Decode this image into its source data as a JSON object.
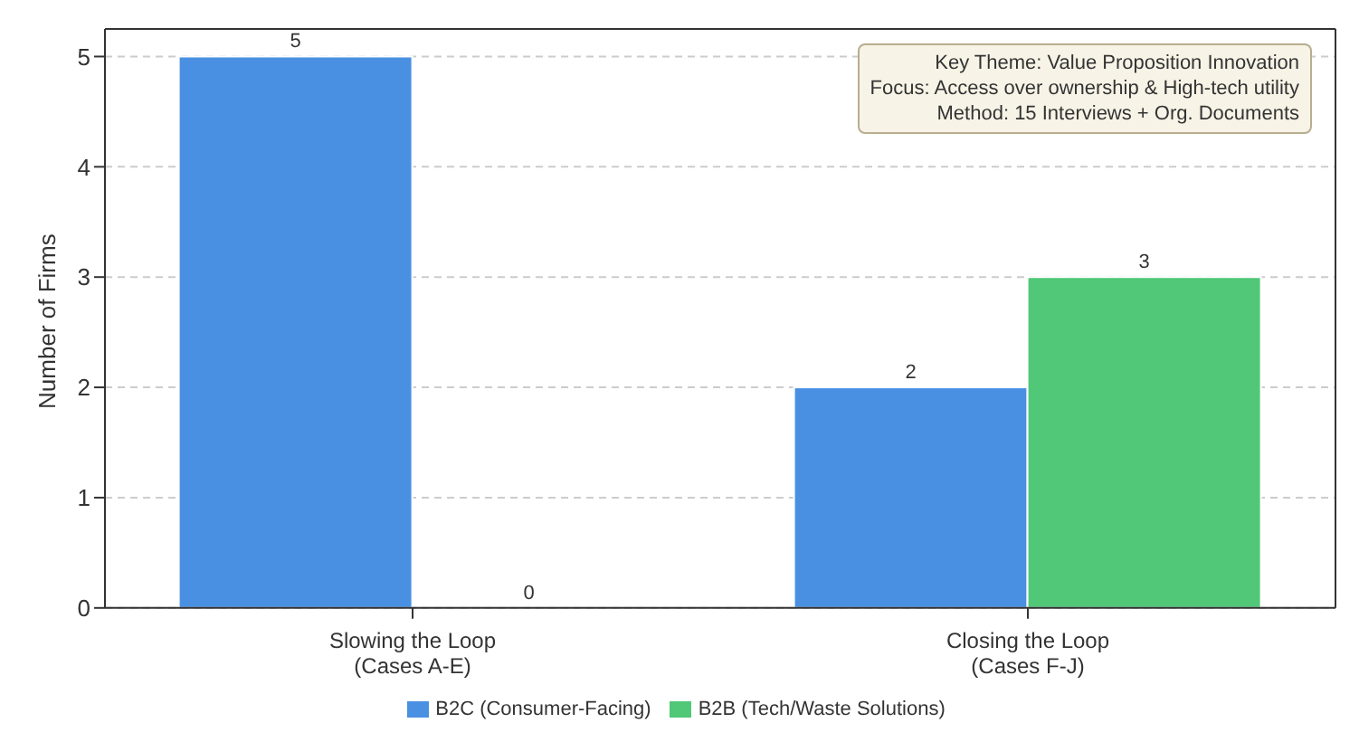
{
  "chart_data": {
    "type": "bar",
    "ylabel": "Number of Firms",
    "categories": [
      "Slowing the Loop\n(Cases A-E)",
      "Closing the Loop\n(Cases F-J)"
    ],
    "series": [
      {
        "name": "B2C (Consumer-Facing)",
        "color": "#4a90e2",
        "values": [
          5,
          2
        ]
      },
      {
        "name": "B2B (Tech/Waste Solutions)",
        "color": "#50c878",
        "values": [
          0,
          3
        ]
      }
    ],
    "ylim": [
      0,
      5.25
    ],
    "yticks": [
      0,
      1,
      2,
      3,
      4,
      5
    ],
    "grid": "y",
    "legend": "bottom",
    "data_labels": true,
    "annotations": [
      "Key Theme: Value Proposition Innovation",
      "Focus: Access over ownership & High-tech utility",
      "Method: 15 Interviews + Org. Documents"
    ]
  }
}
